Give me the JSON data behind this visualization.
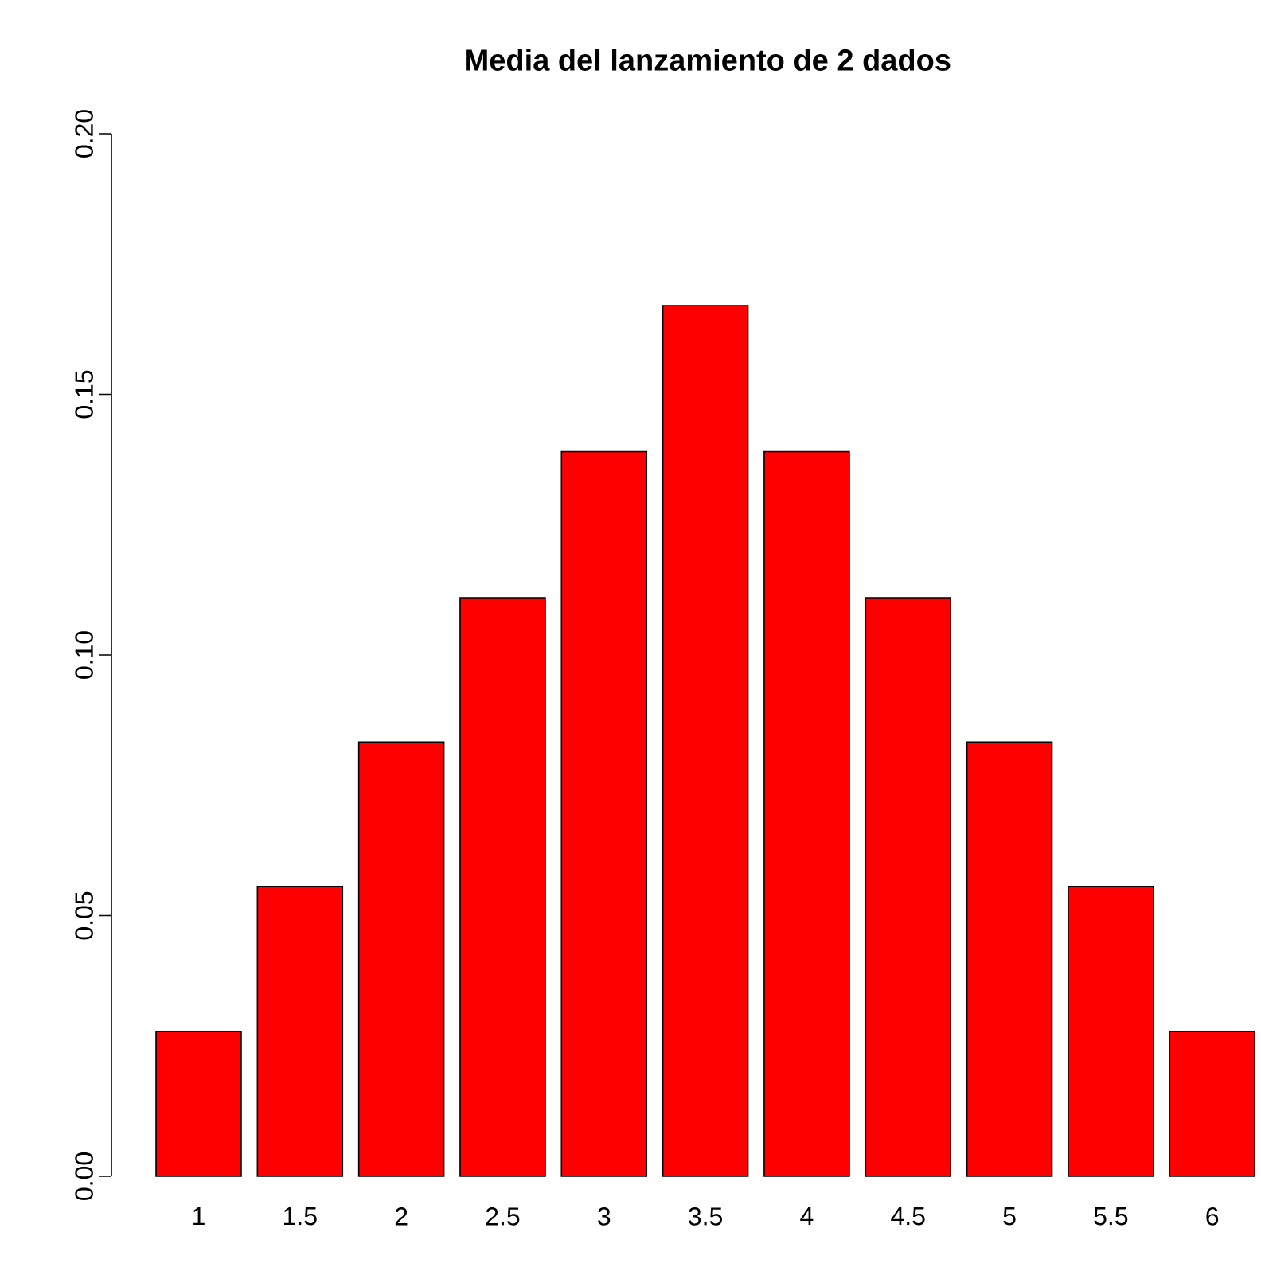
{
  "chart_data": {
    "type": "bar",
    "title": "Media del lanzamiento de 2 dados",
    "categories": [
      "1",
      "1.5",
      "2",
      "2.5",
      "3",
      "3.5",
      "4",
      "4.5",
      "5",
      "5.5",
      "6"
    ],
    "values": [
      0.0278,
      0.0556,
      0.0833,
      0.111,
      0.139,
      0.167,
      0.139,
      0.111,
      0.0833,
      0.0556,
      0.0278
    ],
    "color": "#ff0000",
    "ylim": [
      0,
      0.2
    ],
    "yticks": [
      {
        "value": 0,
        "label": "0.00"
      },
      {
        "value": 0.05,
        "label": "0.05"
      },
      {
        "value": 0.1,
        "label": "0.10"
      },
      {
        "value": 0.15,
        "label": "0.15"
      },
      {
        "value": 0.2,
        "label": "0.20"
      }
    ]
  }
}
